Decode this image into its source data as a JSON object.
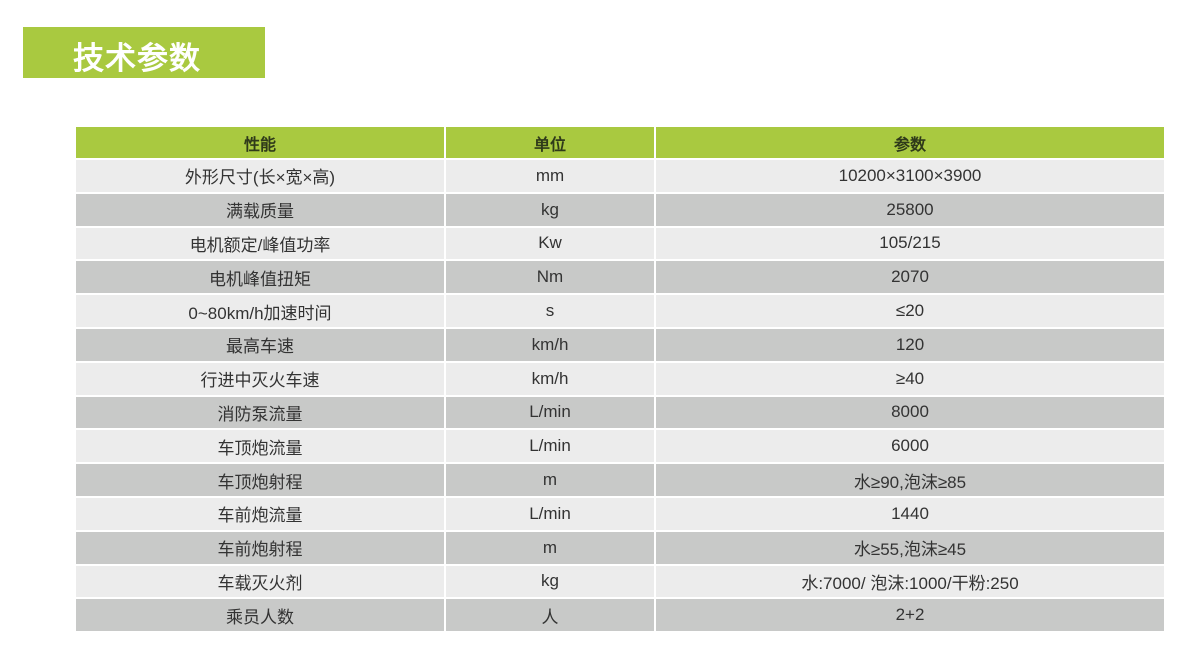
{
  "title": "技术参数",
  "colors": {
    "accent": "#a9c940",
    "row_light": "#ececec",
    "row_dark": "#c8c9c8"
  },
  "table": {
    "headers": [
      "性能",
      "单位",
      "参数"
    ],
    "rows": [
      [
        "外形尺寸(长×宽×高)",
        "mm",
        "10200×3100×3900"
      ],
      [
        "满载质量",
        "kg",
        "25800"
      ],
      [
        "电机额定/峰值功率",
        "Kw",
        "105/215"
      ],
      [
        "电机峰值扭矩",
        "Nm",
        "2070"
      ],
      [
        "0~80km/h加速时间",
        "s",
        "≤20"
      ],
      [
        "最高车速",
        "km/h",
        "120"
      ],
      [
        "行进中灭火车速",
        "km/h",
        "≥40"
      ],
      [
        "消防泵流量",
        "L/min",
        "8000"
      ],
      [
        "车顶炮流量",
        "L/min",
        "6000"
      ],
      [
        "车顶炮射程",
        "m",
        "水≥90,泡沫≥85"
      ],
      [
        "车前炮流量",
        "L/min",
        "1440"
      ],
      [
        "车前炮射程",
        "m",
        "水≥55,泡沫≥45"
      ],
      [
        "车载灭火剂",
        "kg",
        "水:7000/ 泡沫:1000/干粉:250"
      ],
      [
        "乘员人数",
        "人",
        "2+2"
      ]
    ]
  }
}
